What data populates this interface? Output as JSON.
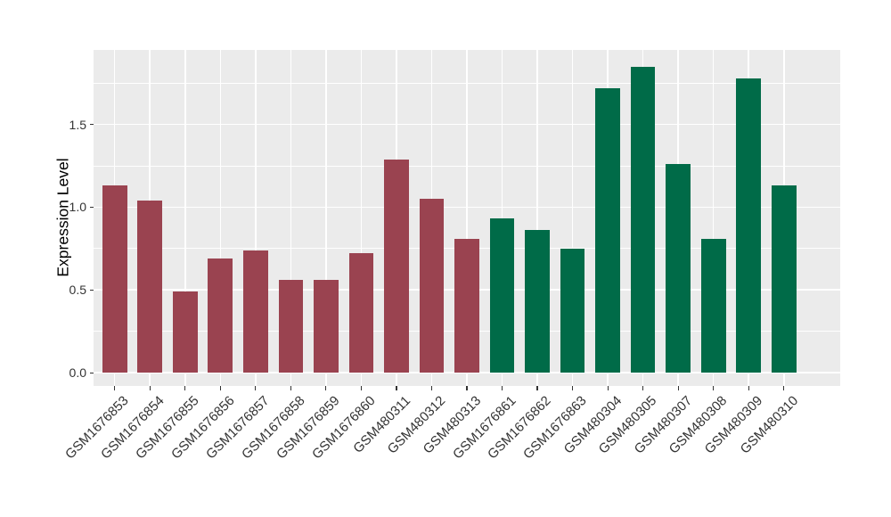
{
  "chart_data": {
    "type": "bar",
    "title": "",
    "xlabel": "",
    "ylabel": "Expression Level",
    "ylim": [
      -0.08,
      1.95
    ],
    "yticks": [
      0,
      0.5,
      1,
      1.5
    ],
    "ytick_labels": [
      "0.0",
      "0.5",
      "1.0",
      "1.5"
    ],
    "yminor_gridlines": [
      0.25,
      0.75,
      1.25,
      1.75
    ],
    "grid": true,
    "legend_position": "none",
    "categories": [
      "GSM1676853",
      "GSM1676854",
      "GSM1676855",
      "GSM1676856",
      "GSM1676857",
      "GSM1676858",
      "GSM1676859",
      "GSM1676860",
      "GSM480311",
      "GSM480312",
      "GSM480313",
      "GSM1676861",
      "GSM1676862",
      "GSM1676863",
      "GSM480304",
      "GSM480305",
      "GSM480307",
      "GSM480308",
      "GSM480309",
      "GSM480310"
    ],
    "values": [
      1.13,
      1.04,
      0.49,
      0.69,
      0.74,
      0.56,
      0.56,
      0.72,
      1.29,
      1.05,
      0.81,
      0.93,
      0.86,
      0.75,
      1.72,
      1.85,
      1.26,
      0.81,
      1.78,
      1.13
    ],
    "bar_colors": [
      "#9a4350",
      "#9a4350",
      "#9a4350",
      "#9a4350",
      "#9a4350",
      "#9a4350",
      "#9a4350",
      "#9a4350",
      "#9a4350",
      "#9a4350",
      "#9a4350",
      "#006b48",
      "#006b48",
      "#006b48",
      "#006b48",
      "#006b48",
      "#006b48",
      "#006b48",
      "#006b48",
      "#006b48"
    ],
    "style": {
      "figure_bg": "#ffffff",
      "panel_bg": "#ebebeb",
      "grid_color": "#ffffff",
      "axis_text_color": "#333333",
      "axis_title_color": "#000000",
      "tick_color": "#333333"
    }
  }
}
